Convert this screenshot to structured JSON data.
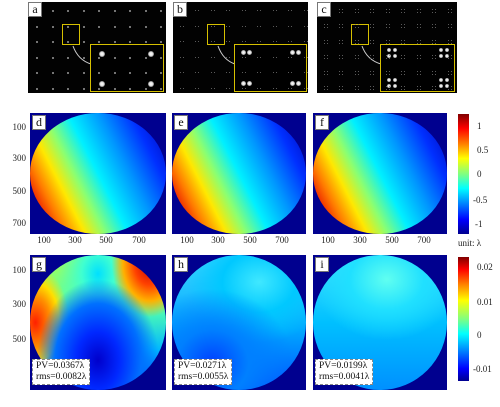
{
  "top_panels": [
    {
      "letter": "a"
    },
    {
      "letter": "b"
    },
    {
      "letter": "c"
    }
  ],
  "middle_panels": [
    {
      "letter": "d"
    },
    {
      "letter": "e"
    },
    {
      "letter": "f"
    }
  ],
  "bottom_panels": [
    {
      "letter": "g",
      "pv": "PV=0.0367λ",
      "rms": "rms=0.0082λ"
    },
    {
      "letter": "h",
      "pv": "PV=0.0271λ",
      "rms": "rms=0.0055λ"
    },
    {
      "letter": "i",
      "pv": "PV=0.0199λ",
      "rms": "rms=0.0041λ"
    }
  ],
  "axis": {
    "y_ticks": [
      "100",
      "300",
      "500",
      "700"
    ],
    "x_ticks": [
      "100",
      "300",
      "500",
      "700"
    ]
  },
  "colorbar_middle": {
    "ticks": [
      "1",
      "0.5",
      "0",
      "-0.5",
      "-1"
    ],
    "unit": "unit: λ"
  },
  "colorbar_bottom": {
    "ticks": [
      "0.02",
      "0.01",
      "0",
      "-0.01"
    ]
  },
  "colors": {
    "yellow_box": "#d6c000",
    "background_field": "#00008f"
  }
}
